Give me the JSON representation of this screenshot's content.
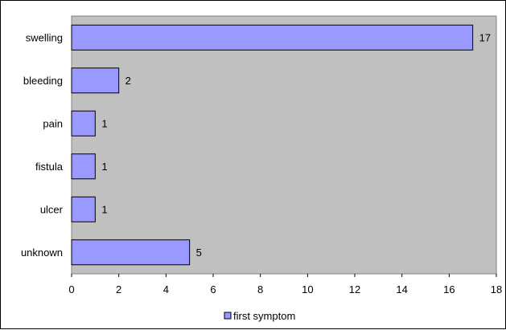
{
  "chart_data": {
    "type": "bar",
    "orientation": "horizontal",
    "categories": [
      "swelling",
      "bleeding",
      "pain",
      "fistula",
      "ulcer",
      "unknown"
    ],
    "series": [
      {
        "name": "first symptom",
        "values": [
          17,
          2,
          1,
          1,
          1,
          5
        ]
      }
    ],
    "x_ticks": [
      0,
      2,
      4,
      6,
      8,
      10,
      12,
      14,
      16,
      18
    ],
    "xlim": [
      0,
      18
    ],
    "title": "",
    "xlabel": "",
    "ylabel": "",
    "grid": false,
    "legend_position": "bottom",
    "data_labels": true
  },
  "colors": {
    "bar_fill": "#9999ff",
    "bar_stroke": "#000000",
    "plot_background": "#c0c0c0"
  }
}
